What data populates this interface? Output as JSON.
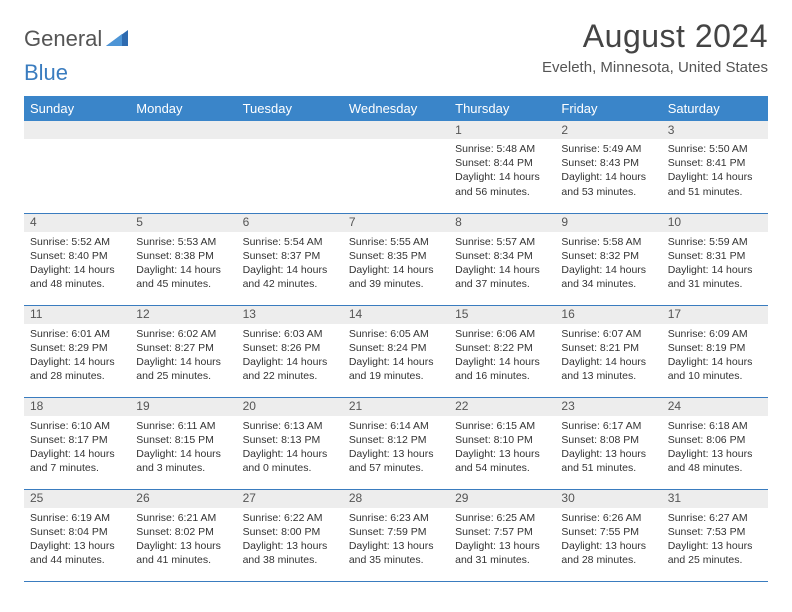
{
  "logo": {
    "general": "General",
    "blue": "Blue"
  },
  "title": "August 2024",
  "location": "Eveleth, Minnesota, United States",
  "colors": {
    "header_bg": "#3a85c9",
    "header_text": "#ffffff",
    "daynum_bg": "#ededed",
    "border": "#3a7cbf",
    "logo_gray": "#555555",
    "logo_blue": "#3a7cbf"
  },
  "weekdays": [
    "Sunday",
    "Monday",
    "Tuesday",
    "Wednesday",
    "Thursday",
    "Friday",
    "Saturday"
  ],
  "weeks": [
    [
      {
        "day": "",
        "lines": []
      },
      {
        "day": "",
        "lines": []
      },
      {
        "day": "",
        "lines": []
      },
      {
        "day": "",
        "lines": []
      },
      {
        "day": "1",
        "lines": [
          "Sunrise: 5:48 AM",
          "Sunset: 8:44 PM",
          "Daylight: 14 hours and 56 minutes."
        ]
      },
      {
        "day": "2",
        "lines": [
          "Sunrise: 5:49 AM",
          "Sunset: 8:43 PM",
          "Daylight: 14 hours and 53 minutes."
        ]
      },
      {
        "day": "3",
        "lines": [
          "Sunrise: 5:50 AM",
          "Sunset: 8:41 PM",
          "Daylight: 14 hours and 51 minutes."
        ]
      }
    ],
    [
      {
        "day": "4",
        "lines": [
          "Sunrise: 5:52 AM",
          "Sunset: 8:40 PM",
          "Daylight: 14 hours and 48 minutes."
        ]
      },
      {
        "day": "5",
        "lines": [
          "Sunrise: 5:53 AM",
          "Sunset: 8:38 PM",
          "Daylight: 14 hours and 45 minutes."
        ]
      },
      {
        "day": "6",
        "lines": [
          "Sunrise: 5:54 AM",
          "Sunset: 8:37 PM",
          "Daylight: 14 hours and 42 minutes."
        ]
      },
      {
        "day": "7",
        "lines": [
          "Sunrise: 5:55 AM",
          "Sunset: 8:35 PM",
          "Daylight: 14 hours and 39 minutes."
        ]
      },
      {
        "day": "8",
        "lines": [
          "Sunrise: 5:57 AM",
          "Sunset: 8:34 PM",
          "Daylight: 14 hours and 37 minutes."
        ]
      },
      {
        "day": "9",
        "lines": [
          "Sunrise: 5:58 AM",
          "Sunset: 8:32 PM",
          "Daylight: 14 hours and 34 minutes."
        ]
      },
      {
        "day": "10",
        "lines": [
          "Sunrise: 5:59 AM",
          "Sunset: 8:31 PM",
          "Daylight: 14 hours and 31 minutes."
        ]
      }
    ],
    [
      {
        "day": "11",
        "lines": [
          "Sunrise: 6:01 AM",
          "Sunset: 8:29 PM",
          "Daylight: 14 hours and 28 minutes."
        ]
      },
      {
        "day": "12",
        "lines": [
          "Sunrise: 6:02 AM",
          "Sunset: 8:27 PM",
          "Daylight: 14 hours and 25 minutes."
        ]
      },
      {
        "day": "13",
        "lines": [
          "Sunrise: 6:03 AM",
          "Sunset: 8:26 PM",
          "Daylight: 14 hours and 22 minutes."
        ]
      },
      {
        "day": "14",
        "lines": [
          "Sunrise: 6:05 AM",
          "Sunset: 8:24 PM",
          "Daylight: 14 hours and 19 minutes."
        ]
      },
      {
        "day": "15",
        "lines": [
          "Sunrise: 6:06 AM",
          "Sunset: 8:22 PM",
          "Daylight: 14 hours and 16 minutes."
        ]
      },
      {
        "day": "16",
        "lines": [
          "Sunrise: 6:07 AM",
          "Sunset: 8:21 PM",
          "Daylight: 14 hours and 13 minutes."
        ]
      },
      {
        "day": "17",
        "lines": [
          "Sunrise: 6:09 AM",
          "Sunset: 8:19 PM",
          "Daylight: 14 hours and 10 minutes."
        ]
      }
    ],
    [
      {
        "day": "18",
        "lines": [
          "Sunrise: 6:10 AM",
          "Sunset: 8:17 PM",
          "Daylight: 14 hours and 7 minutes."
        ]
      },
      {
        "day": "19",
        "lines": [
          "Sunrise: 6:11 AM",
          "Sunset: 8:15 PM",
          "Daylight: 14 hours and 3 minutes."
        ]
      },
      {
        "day": "20",
        "lines": [
          "Sunrise: 6:13 AM",
          "Sunset: 8:13 PM",
          "Daylight: 14 hours and 0 minutes."
        ]
      },
      {
        "day": "21",
        "lines": [
          "Sunrise: 6:14 AM",
          "Sunset: 8:12 PM",
          "Daylight: 13 hours and 57 minutes."
        ]
      },
      {
        "day": "22",
        "lines": [
          "Sunrise: 6:15 AM",
          "Sunset: 8:10 PM",
          "Daylight: 13 hours and 54 minutes."
        ]
      },
      {
        "day": "23",
        "lines": [
          "Sunrise: 6:17 AM",
          "Sunset: 8:08 PM",
          "Daylight: 13 hours and 51 minutes."
        ]
      },
      {
        "day": "24",
        "lines": [
          "Sunrise: 6:18 AM",
          "Sunset: 8:06 PM",
          "Daylight: 13 hours and 48 minutes."
        ]
      }
    ],
    [
      {
        "day": "25",
        "lines": [
          "Sunrise: 6:19 AM",
          "Sunset: 8:04 PM",
          "Daylight: 13 hours and 44 minutes."
        ]
      },
      {
        "day": "26",
        "lines": [
          "Sunrise: 6:21 AM",
          "Sunset: 8:02 PM",
          "Daylight: 13 hours and 41 minutes."
        ]
      },
      {
        "day": "27",
        "lines": [
          "Sunrise: 6:22 AM",
          "Sunset: 8:00 PM",
          "Daylight: 13 hours and 38 minutes."
        ]
      },
      {
        "day": "28",
        "lines": [
          "Sunrise: 6:23 AM",
          "Sunset: 7:59 PM",
          "Daylight: 13 hours and 35 minutes."
        ]
      },
      {
        "day": "29",
        "lines": [
          "Sunrise: 6:25 AM",
          "Sunset: 7:57 PM",
          "Daylight: 13 hours and 31 minutes."
        ]
      },
      {
        "day": "30",
        "lines": [
          "Sunrise: 6:26 AM",
          "Sunset: 7:55 PM",
          "Daylight: 13 hours and 28 minutes."
        ]
      },
      {
        "day": "31",
        "lines": [
          "Sunrise: 6:27 AM",
          "Sunset: 7:53 PM",
          "Daylight: 13 hours and 25 minutes."
        ]
      }
    ]
  ]
}
